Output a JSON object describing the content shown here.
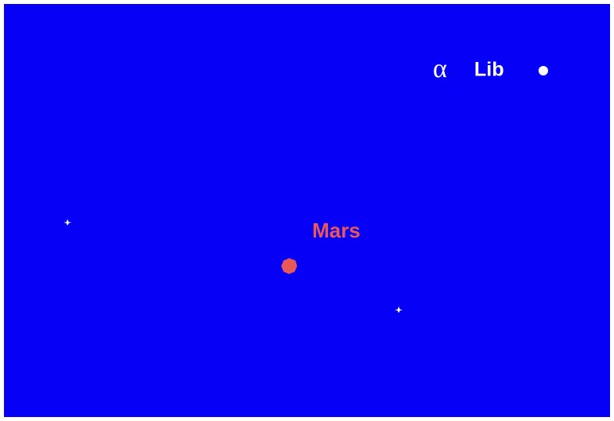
{
  "labels": {
    "alpha_lib": {
      "symbol": "α",
      "name": "Lib"
    },
    "mars": "Mars"
  }
}
